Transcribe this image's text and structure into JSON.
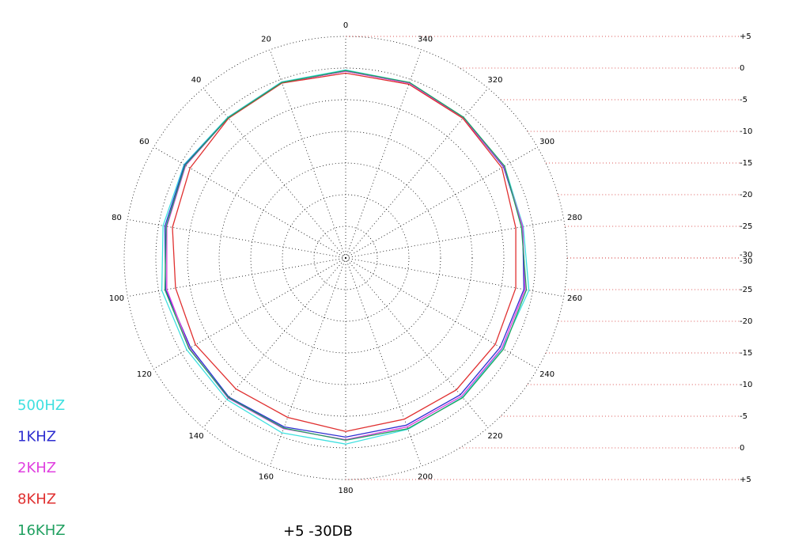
{
  "chart_data": {
    "type": "polar",
    "theta": [
      0,
      20,
      40,
      60,
      80,
      100,
      120,
      140,
      160,
      180,
      200,
      220,
      240,
      260,
      280,
      300,
      320,
      340
    ],
    "rlim": [
      -30,
      5
    ],
    "rticks": [
      -30,
      -25,
      -20,
      -15,
      -10,
      -5,
      0,
      {
        "value": 5,
        "label": "+5"
      }
    ],
    "range_label": "+5 -30DB",
    "series": [
      {
        "name": "500HZ",
        "color": "#3fe0e0",
        "values": [
          -0.3,
          -0.4,
          -1.0,
          -0.5,
          -0.7,
          -0.5,
          -1.0,
          -0.8,
          -0.6,
          -0.6,
          -1.2,
          -1.3,
          -1.4,
          -0.6,
          -1.5,
          -1.0,
          -1.0,
          -0.5
        ]
      },
      {
        "name": "1KHZ",
        "color": "#2e2ed0",
        "values": [
          -0.5,
          -0.5,
          -1.1,
          -0.6,
          -1.0,
          -1.1,
          -1.7,
          -1.3,
          -1.6,
          -1.7,
          -1.9,
          -1.8,
          -1.8,
          -1.4,
          -1.6,
          -1.2,
          -1.1,
          -0.6
        ]
      },
      {
        "name": "2KHZ",
        "color": "#e040e0",
        "values": [
          -0.5,
          -0.5,
          -1.1,
          -0.8,
          -1.3,
          -1.3,
          -1.5,
          -1.1,
          -1.3,
          -1.3,
          -1.6,
          -1.5,
          -1.5,
          -1.2,
          -1.6,
          -1.1,
          -1.1,
          -0.6
        ]
      },
      {
        "name": "8KHZ",
        "color": "#e03030",
        "values": [
          -0.8,
          -0.6,
          -1.2,
          -1.6,
          -2.2,
          -2.7,
          -2.6,
          -3.0,
          -3.2,
          -2.6,
          -2.9,
          -2.8,
          -2.7,
          -2.7,
          -2.7,
          -1.5,
          -1.2,
          -0.8
        ]
      },
      {
        "name": "16KHZ",
        "color": "#20a060",
        "values": [
          -0.4,
          -0.5,
          -1.1,
          -0.7,
          -1.2,
          -1.0,
          -1.4,
          -1.2,
          -1.4,
          -1.2,
          -1.3,
          -1.2,
          -1.2,
          -1.0,
          -1.8,
          -1.0,
          -1.0,
          -0.5
        ]
      }
    ]
  }
}
